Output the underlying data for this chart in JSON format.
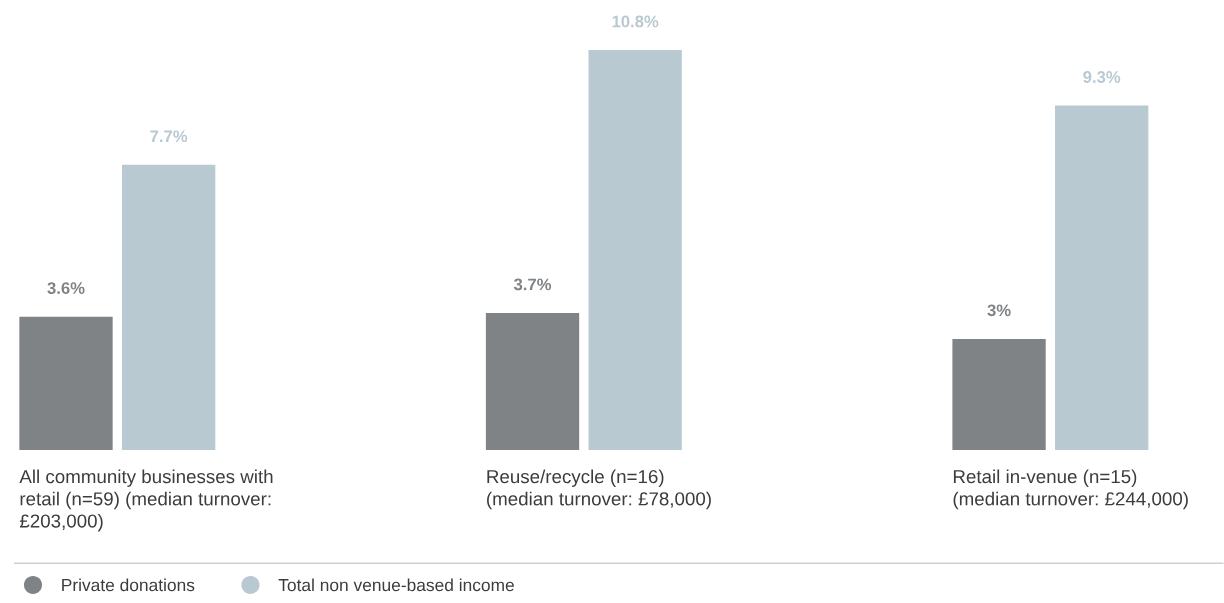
{
  "chart_data": {
    "type": "bar",
    "categories": [
      "All community businesses with\nretail (n=59) (median turnover:\n£203,000)",
      "Reuse/recycle (n=16)\n(median turnover: £78,000)",
      "Retail in-venue (n=15)\n(median turnover: £244,000)"
    ],
    "series": [
      {
        "name": "Private donations",
        "color": "#7f8386",
        "values": [
          3.6,
          3.7,
          3
        ],
        "value_labels": [
          "3.6%",
          "3.7%",
          "3%"
        ]
      },
      {
        "name": "Total non venue-based income",
        "color": "#b9c9d1",
        "values": [
          7.7,
          10.8,
          9.3
        ],
        "value_labels": [
          "7.7%",
          "10.8%",
          "9.3%"
        ]
      }
    ],
    "legend": "bottom"
  }
}
